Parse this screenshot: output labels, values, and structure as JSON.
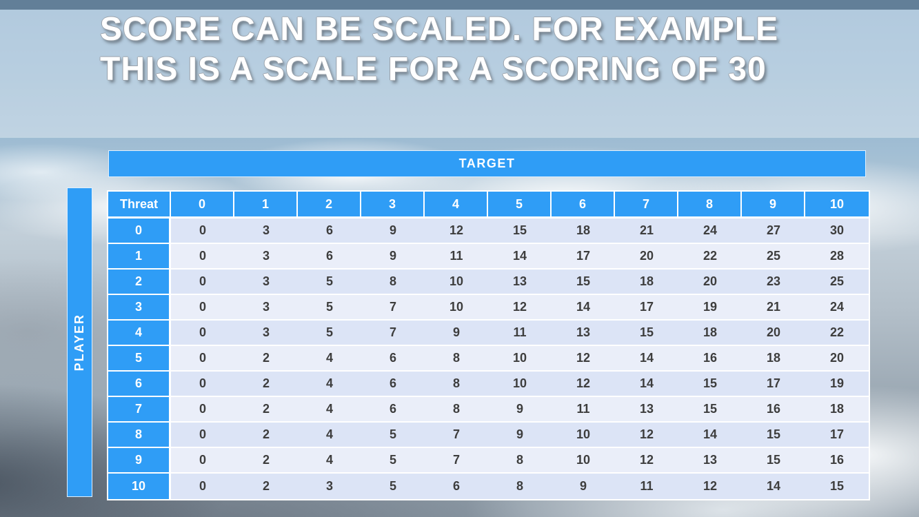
{
  "slide": {
    "title_line1": "SCORE CAN BE SCALED. FOR EXAMPLE",
    "title_line2": "THIS IS A SCALE FOR A SCORING OF 30"
  },
  "table": {
    "target_label": "TARGET",
    "player_label": "PLAYER",
    "corner_label": "Threat",
    "column_headers": [
      "0",
      "1",
      "2",
      "3",
      "4",
      "5",
      "6",
      "7",
      "8",
      "9",
      "10"
    ],
    "row_headers": [
      "0",
      "1",
      "2",
      "3",
      "4",
      "5",
      "6",
      "7",
      "8",
      "9",
      "10"
    ],
    "rows": [
      [
        0,
        3,
        6,
        9,
        12,
        15,
        18,
        21,
        24,
        27,
        30
      ],
      [
        0,
        3,
        6,
        9,
        11,
        14,
        17,
        20,
        22,
        25,
        28
      ],
      [
        0,
        3,
        5,
        8,
        10,
        13,
        15,
        18,
        20,
        23,
        25
      ],
      [
        0,
        3,
        5,
        7,
        10,
        12,
        14,
        17,
        19,
        21,
        24
      ],
      [
        0,
        3,
        5,
        7,
        9,
        11,
        13,
        15,
        18,
        20,
        22
      ],
      [
        0,
        2,
        4,
        6,
        8,
        10,
        12,
        14,
        16,
        18,
        20
      ],
      [
        0,
        2,
        4,
        6,
        8,
        10,
        12,
        14,
        15,
        17,
        19
      ],
      [
        0,
        2,
        4,
        6,
        8,
        9,
        11,
        13,
        15,
        16,
        18
      ],
      [
        0,
        2,
        4,
        5,
        7,
        9,
        10,
        12,
        14,
        15,
        17
      ],
      [
        0,
        2,
        4,
        5,
        7,
        8,
        10,
        12,
        13,
        15,
        16
      ],
      [
        0,
        2,
        3,
        5,
        6,
        8,
        9,
        11,
        12,
        14,
        15
      ]
    ]
  },
  "colors": {
    "header_blue": "#2F9DF6",
    "band_dark": "#DCE4F6",
    "band_light": "#EAEEF9",
    "cell_text": "#3D3D3D",
    "title_text": "#FFFFFF",
    "top_strip": "#627F98"
  }
}
